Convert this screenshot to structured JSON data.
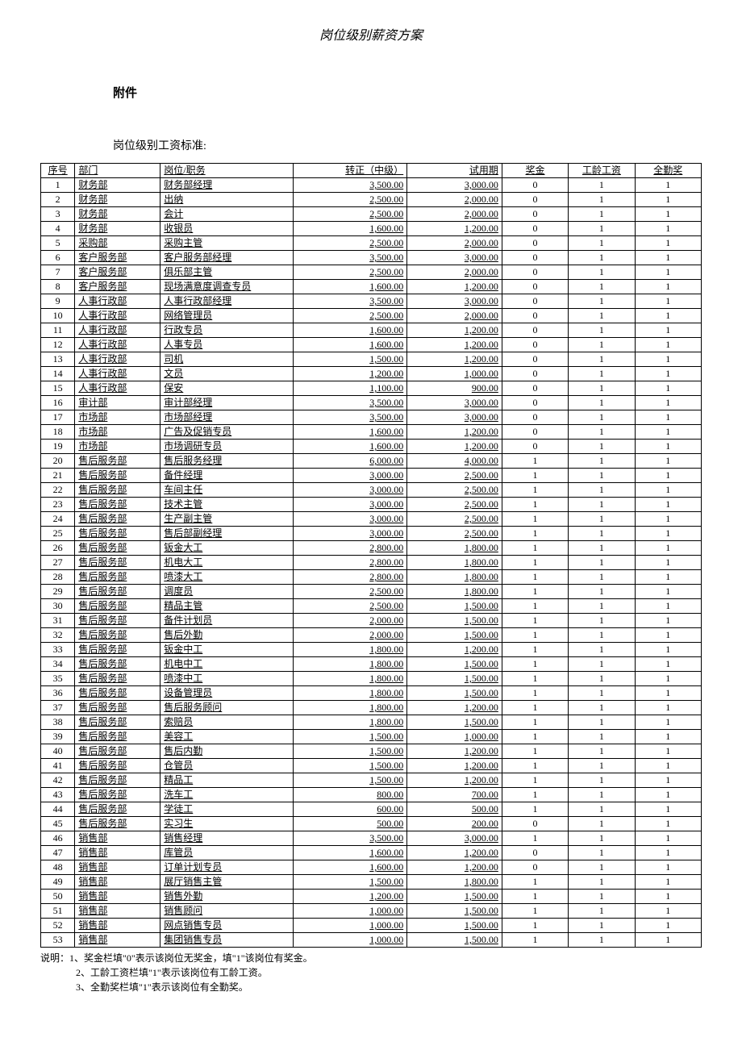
{
  "page_title": "岗位级别薪资方案",
  "section_heading": "附件",
  "table_heading": "岗位级别工资标准:",
  "columns": [
    "序号",
    "部门",
    "岗位/职务",
    "转正（中级）",
    "试用期",
    "奖金",
    "工龄工资",
    "全勤奖"
  ],
  "rows": [
    [
      "1",
      "财务部",
      "财务部经理",
      "3,500.00",
      "3,000.00",
      "0",
      "1",
      "1"
    ],
    [
      "2",
      "财务部",
      "出纳",
      "2,500.00",
      "2,000.00",
      "0",
      "1",
      "1"
    ],
    [
      "3",
      "财务部",
      "会计",
      "2,500.00",
      "2,000.00",
      "0",
      "1",
      "1"
    ],
    [
      "4",
      "财务部",
      "收银员",
      "1,600.00",
      "1,200.00",
      "0",
      "1",
      "1"
    ],
    [
      "5",
      "采购部",
      "采购主管",
      "2,500.00",
      "2,000.00",
      "0",
      "1",
      "1"
    ],
    [
      "6",
      "客户服务部",
      "客户服务部经理",
      "3,500.00",
      "3,000.00",
      "0",
      "1",
      "1"
    ],
    [
      "7",
      "客户服务部",
      "俱乐部主管",
      "2,500.00",
      "2,000.00",
      "0",
      "1",
      "1"
    ],
    [
      "8",
      "客户服务部",
      "现场满意度调查专员",
      "1,600.00",
      "1,200.00",
      "0",
      "1",
      "1"
    ],
    [
      "9",
      "人事行政部",
      "人事行政部经理",
      "3,500.00",
      "3,000.00",
      "0",
      "1",
      "1"
    ],
    [
      "10",
      "人事行政部",
      "网络管理员",
      "2,500.00",
      "2,000.00",
      "0",
      "1",
      "1"
    ],
    [
      "11",
      "人事行政部",
      "行政专员",
      "1,600.00",
      "1,200.00",
      "0",
      "1",
      "1"
    ],
    [
      "12",
      "人事行政部",
      "人事专员",
      "1,600.00",
      "1,200.00",
      "0",
      "1",
      "1"
    ],
    [
      "13",
      "人事行政部",
      "司机",
      "1,500.00",
      "1,200.00",
      "0",
      "1",
      "1"
    ],
    [
      "14",
      "人事行政部",
      "文员",
      "1,200.00",
      "1,000.00",
      "0",
      "1",
      "1"
    ],
    [
      "15",
      "人事行政部",
      "保安",
      "1,100.00",
      "900.00",
      "0",
      "1",
      "1"
    ],
    [
      "16",
      "审计部",
      "审计部经理",
      "3,500.00",
      "3,000.00",
      "0",
      "1",
      "1"
    ],
    [
      "17",
      "市场部",
      "市场部经理",
      "3,500.00",
      "3,000.00",
      "0",
      "1",
      "1"
    ],
    [
      "18",
      "市场部",
      "广告及促销专员",
      "1,600.00",
      "1,200.00",
      "0",
      "1",
      "1"
    ],
    [
      "19",
      "市场部",
      "市场调研专员",
      "1,600.00",
      "1,200.00",
      "0",
      "1",
      "1"
    ],
    [
      "20",
      "售后服务部",
      "售后服务经理",
      "6,000.00",
      "4,000.00",
      "1",
      "1",
      "1"
    ],
    [
      "21",
      "售后服务部",
      "备件经理",
      "3,000.00",
      "2,500.00",
      "1",
      "1",
      "1"
    ],
    [
      "22",
      "售后服务部",
      "车间主任",
      "3,000.00",
      "2,500.00",
      "1",
      "1",
      "1"
    ],
    [
      "23",
      "售后服务部",
      "技术主管",
      "3,000.00",
      "2,500.00",
      "1",
      "1",
      "1"
    ],
    [
      "24",
      "售后服务部",
      "生产副主管",
      "3,000.00",
      "2,500.00",
      "1",
      "1",
      "1"
    ],
    [
      "25",
      "售后服务部",
      "售后部副经理",
      "3,000.00",
      "2,500.00",
      "1",
      "1",
      "1"
    ],
    [
      "26",
      "售后服务部",
      "钣金大工",
      "2,800.00",
      "1,800.00",
      "1",
      "1",
      "1"
    ],
    [
      "27",
      "售后服务部",
      "机电大工",
      "2,800.00",
      "1,800.00",
      "1",
      "1",
      "1"
    ],
    [
      "28",
      "售后服务部",
      "喷漆大工",
      "2,800.00",
      "1,800.00",
      "1",
      "1",
      "1"
    ],
    [
      "29",
      "售后服务部",
      "调度员",
      "2,500.00",
      "1,800.00",
      "1",
      "1",
      "1"
    ],
    [
      "30",
      "售后服务部",
      "精品主管",
      "2,500.00",
      "1,500.00",
      "1",
      "1",
      "1"
    ],
    [
      "31",
      "售后服务部",
      "备件计划员",
      "2,000.00",
      "1,500.00",
      "1",
      "1",
      "1"
    ],
    [
      "32",
      "售后服务部",
      "售后外勤",
      "2,000.00",
      "1,500.00",
      "1",
      "1",
      "1"
    ],
    [
      "33",
      "售后服务部",
      "钣金中工",
      "1,800.00",
      "1,200.00",
      "1",
      "1",
      "1"
    ],
    [
      "34",
      "售后服务部",
      "机电中工",
      "1,800.00",
      "1,500.00",
      "1",
      "1",
      "1"
    ],
    [
      "35",
      "售后服务部",
      "喷漆中工",
      "1,800.00",
      "1,500.00",
      "1",
      "1",
      "1"
    ],
    [
      "36",
      "售后服务部",
      "设备管理员",
      "1,800.00",
      "1,500.00",
      "1",
      "1",
      "1"
    ],
    [
      "37",
      "售后服务部",
      "售后服务顾问",
      "1,800.00",
      "1,200.00",
      "1",
      "1",
      "1"
    ],
    [
      "38",
      "售后服务部",
      "索赔员",
      "1,800.00",
      "1,500.00",
      "1",
      "1",
      "1"
    ],
    [
      "39",
      "售后服务部",
      "美容工",
      "1,500.00",
      "1,000.00",
      "1",
      "1",
      "1"
    ],
    [
      "40",
      "售后服务部",
      "售后内勤",
      "1,500.00",
      "1,200.00",
      "1",
      "1",
      "1"
    ],
    [
      "41",
      "售后服务部",
      "仓管员",
      "1,500.00",
      "1,200.00",
      "1",
      "1",
      "1"
    ],
    [
      "42",
      "售后服务部",
      "精品工",
      "1,500.00",
      "1,200.00",
      "1",
      "1",
      "1"
    ],
    [
      "43",
      "售后服务部",
      "洗车工",
      "800.00",
      "700.00",
      "1",
      "1",
      "1"
    ],
    [
      "44",
      "售后服务部",
      "学徒工",
      "600.00",
      "500.00",
      "1",
      "1",
      "1"
    ],
    [
      "45",
      "售后服务部",
      "实习生",
      "500.00",
      "200.00",
      "0",
      "1",
      "1"
    ],
    [
      "46",
      "销售部",
      "销售经理",
      "3,500.00",
      "3,000.00",
      "1",
      "1",
      "1"
    ],
    [
      "47",
      "销售部",
      "库管员",
      "1,600.00",
      "1,200.00",
      "0",
      "1",
      "1"
    ],
    [
      "48",
      "销售部",
      "订单计划专员",
      "1,600.00",
      "1,200.00",
      "0",
      "1",
      "1"
    ],
    [
      "49",
      "销售部",
      "展厅销售主管",
      "1,500.00",
      "1,800.00",
      "1",
      "1",
      "1"
    ],
    [
      "50",
      "销售部",
      "销售外勤",
      "1,200.00",
      "1,500.00",
      "1",
      "1",
      "1"
    ],
    [
      "51",
      "销售部",
      "销售顾问",
      "1,000.00",
      "1,500.00",
      "1",
      "1",
      "1"
    ],
    [
      "52",
      "销售部",
      "网点销售专员",
      "1,000.00",
      "1,500.00",
      "1",
      "1",
      "1"
    ],
    [
      "53",
      "销售部",
      "集团销售专员",
      "1,000.00",
      "1,500.00",
      "1",
      "1",
      "1"
    ]
  ],
  "notes": [
    "说明：1、奖金栏填\"0\"表示该岗位无奖金，填\"1\"该岗位有奖金。",
    "2、工龄工资栏填\"1\"表示该岗位有工龄工资。",
    "3、全勤奖栏填\"1\"表示该岗位有全勤奖。"
  ]
}
